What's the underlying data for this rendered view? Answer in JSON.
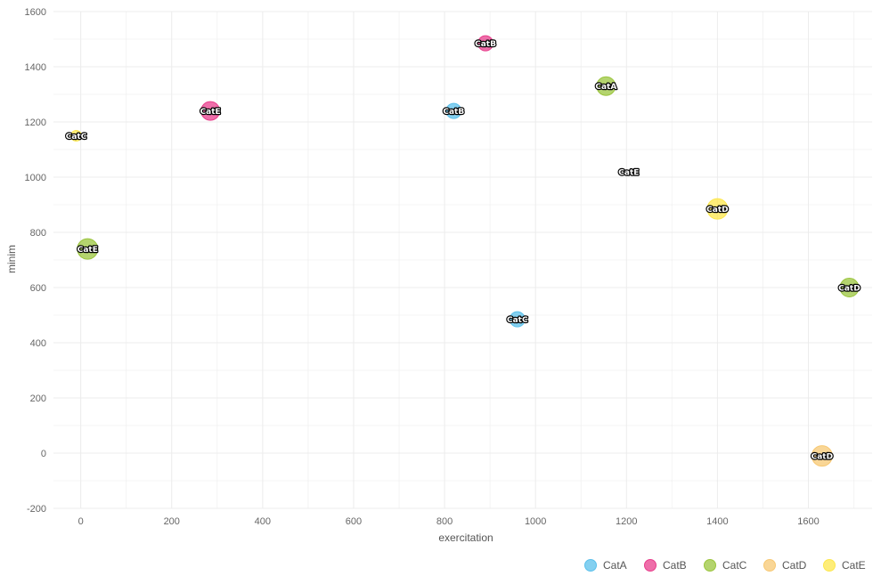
{
  "chart_data": {
    "type": "scatter",
    "xlabel": "exercitation",
    "ylabel": "minim",
    "xlim": [
      -60,
      1740
    ],
    "ylim": [
      -200,
      1600
    ],
    "xticks": [
      0,
      200,
      400,
      600,
      800,
      1000,
      1200,
      1400,
      1600
    ],
    "yticks": [
      -200,
      0,
      200,
      400,
      600,
      800,
      1000,
      1200,
      1400,
      1600
    ],
    "grid": true,
    "legend_position": "bottom-right",
    "categories": [
      "CatA",
      "CatB",
      "CatC",
      "CatD",
      "CatE"
    ],
    "colors": {
      "CatA": "#5bc0eb",
      "CatB": "#e83e8c",
      "CatC": "#9bc53d",
      "CatD": "#f7c873",
      "CatE": "#fde74c"
    },
    "points": [
      {
        "x": -10,
        "y": 1150,
        "series": "CatE",
        "label": "CatC",
        "size": 12
      },
      {
        "x": 15,
        "y": 740,
        "series": "CatC",
        "label": "CatE",
        "size": 23
      },
      {
        "x": 285,
        "y": 1240,
        "series": "CatB",
        "label": "CatE",
        "size": 21
      },
      {
        "x": 820,
        "y": 1240,
        "series": "CatA",
        "label": "CatB",
        "size": 17
      },
      {
        "x": 890,
        "y": 1485,
        "series": "CatB",
        "label": "CatB",
        "size": 17
      },
      {
        "x": 960,
        "y": 485,
        "series": "CatA",
        "label": "CatC",
        "size": 17
      },
      {
        "x": 1155,
        "y": 1330,
        "series": "CatC",
        "label": "CatA",
        "size": 21
      },
      {
        "x": 1205,
        "y": 1020,
        "series": "CatE",
        "label": "CatE",
        "size": 0
      },
      {
        "x": 1400,
        "y": 885,
        "series": "CatE",
        "label": "CatD",
        "size": 23
      },
      {
        "x": 1630,
        "y": -10,
        "series": "CatD",
        "label": "CatD",
        "size": 23
      },
      {
        "x": 1690,
        "y": 600,
        "series": "CatC",
        "label": "CatD",
        "size": 21
      }
    ]
  }
}
